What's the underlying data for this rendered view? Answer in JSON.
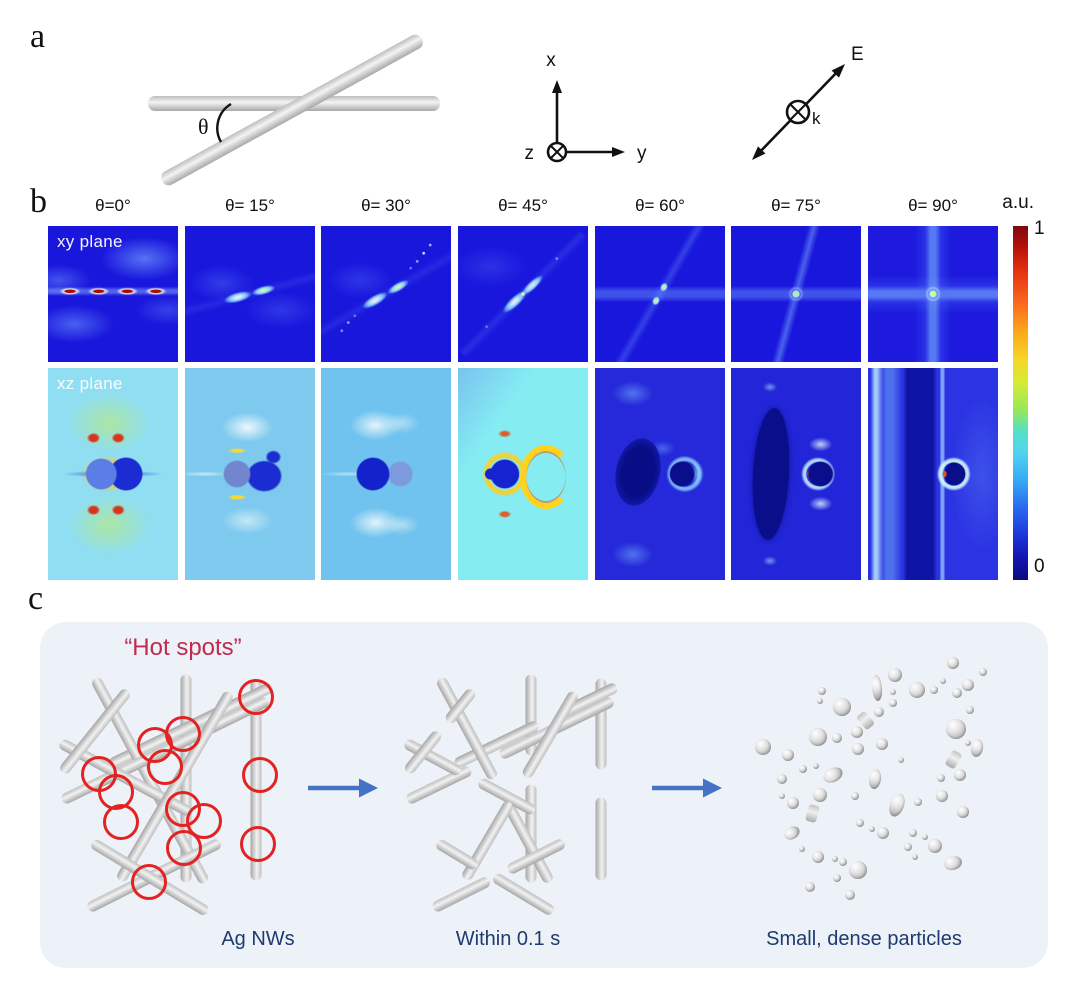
{
  "panels": {
    "a": {
      "label": "a",
      "theta_symbol": "θ",
      "axes": {
        "x": "x",
        "y": "y",
        "z": "z"
      },
      "polarization": {
        "E": "E",
        "k": "k"
      }
    },
    "b": {
      "label": "b",
      "theta_labels": [
        "θ=0°",
        "θ= 15°",
        "θ= 30°",
        "θ= 45°",
        "θ= 60°",
        "θ= 75°",
        "θ= 90°"
      ],
      "row_labels": [
        "xy plane",
        "xz plane"
      ],
      "colorbar": {
        "unit": "a.u.",
        "max": "1",
        "min": "0"
      }
    },
    "c": {
      "label": "c",
      "title": "“Hot spots”",
      "captions": [
        "Ag NWs",
        "Within 0.1 s",
        "Small, dense particles"
      ],
      "colors": {
        "title_text": "#c22a4e",
        "caption_text": "#1e3a6e",
        "arrow": "#4472c4",
        "hotspot_ring": "#e32222"
      }
    }
  }
}
